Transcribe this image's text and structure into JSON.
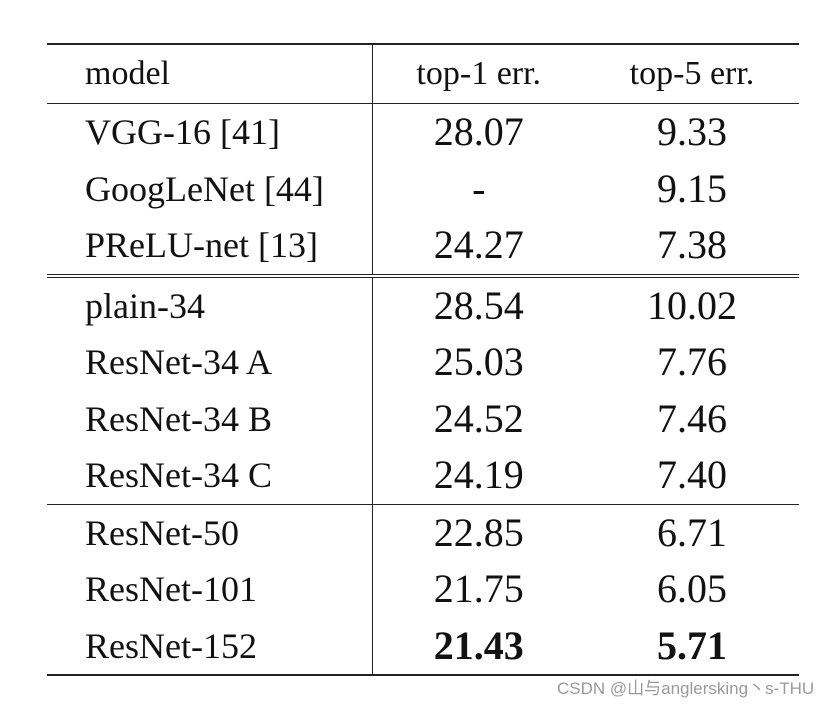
{
  "table": {
    "headers": [
      "model",
      "top-1 err.",
      "top-5 err."
    ],
    "groups": [
      [
        {
          "model": "VGG-16 [41]",
          "top1": "28.07",
          "top5": "9.33"
        },
        {
          "model": "GoogLeNet [44]",
          "top1": "-",
          "top5": "9.15"
        },
        {
          "model": "PReLU-net [13]",
          "top1": "24.27",
          "top5": "7.38"
        }
      ],
      [
        {
          "model": "plain-34",
          "top1": "28.54",
          "top5": "10.02"
        },
        {
          "model": "ResNet-34 A",
          "top1": "25.03",
          "top5": "7.76"
        },
        {
          "model": "ResNet-34 B",
          "top1": "24.52",
          "top5": "7.46"
        },
        {
          "model": "ResNet-34 C",
          "top1": "24.19",
          "top5": "7.40"
        }
      ],
      [
        {
          "model": "ResNet-50",
          "top1": "22.85",
          "top5": "6.71"
        },
        {
          "model": "ResNet-101",
          "top1": "21.75",
          "top5": "6.05"
        },
        {
          "model": "ResNet-152",
          "top1": "21.43",
          "top5": "5.71"
        }
      ]
    ]
  },
  "watermark": "CSDN @山与anglersking丶s-THU"
}
